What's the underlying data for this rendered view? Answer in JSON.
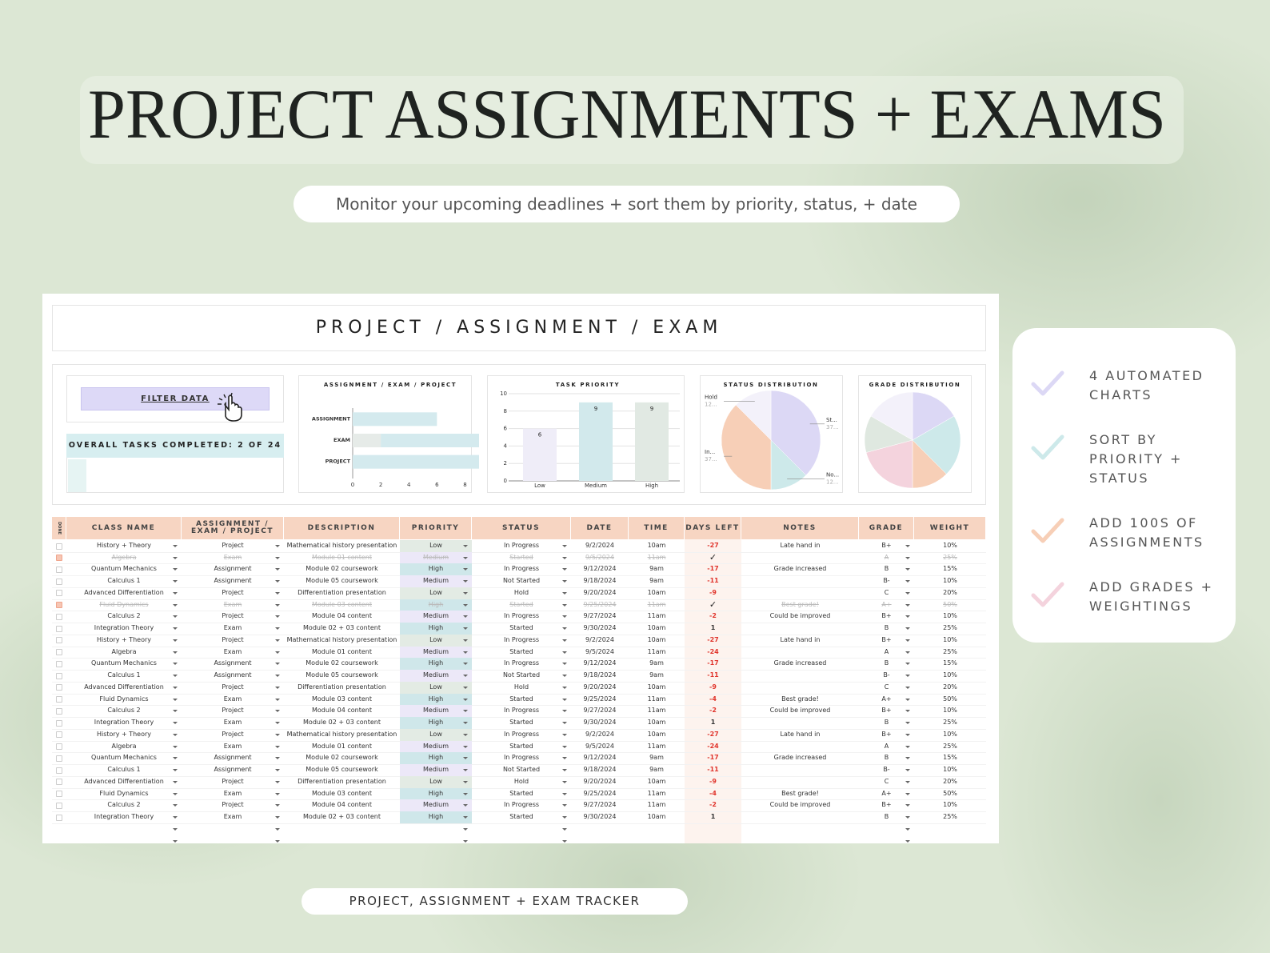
{
  "title": "PROJECT ASSIGNMENTS + EXAMS",
  "subtitle": "Monitor your upcoming deadlines + sort them by priority, status, + date",
  "sheet": {
    "title": "PROJECT / ASSIGNMENT / EXAM",
    "filter_button": "FILTER DATA",
    "tasks_completed": "OVERALL TASKS COMPLETED: 2 OF 24"
  },
  "chart_data": [
    {
      "type": "bar",
      "orientation": "horizontal",
      "title": "ASSIGNMENT / EXAM / PROJECT",
      "categories": [
        "ASSIGNMENT",
        "EXAM",
        "PROJECT"
      ],
      "series": [
        {
          "color": "#e6ebe8",
          "values": [
            0,
            2,
            0
          ]
        },
        {
          "color": "#d4eaee",
          "values": [
            6,
            7,
            9
          ]
        }
      ],
      "xlim": [
        0,
        9
      ],
      "xticks": [
        0,
        2,
        4,
        6,
        8
      ]
    },
    {
      "type": "bar",
      "title": "TASK PRIORITY",
      "categories": [
        "Low",
        "Medium",
        "High"
      ],
      "values": [
        6,
        9,
        9
      ],
      "colors": [
        "#efedf8",
        "#d2e9ec",
        "#e1e9e3"
      ],
      "ylim": [
        0,
        10
      ],
      "yticks": [
        0,
        2,
        4,
        6,
        8,
        10
      ],
      "grid": true
    },
    {
      "type": "pie",
      "title": "STATUS DISTRIBUTION",
      "categories": [
        "St...",
        "No...",
        "In...",
        "Hold"
      ],
      "values": [
        37.5,
        12.5,
        37.5,
        12.5
      ],
      "value_labels": [
        "37...",
        "12...",
        "37...",
        "12..."
      ],
      "colors": [
        "#dcd8f5",
        "#cde9ea",
        "#f7cfb7",
        "#f3f1fa"
      ]
    },
    {
      "type": "pie",
      "title": "GRADE DISTRIBUTION",
      "values": [
        4,
        5,
        3,
        5,
        3,
        4
      ],
      "colors": [
        "#dcd8f5",
        "#cde9ea",
        "#f7cfb7",
        "#f4d3dd",
        "#dfe8e0",
        "#f3f1fa"
      ]
    }
  ],
  "table": {
    "headers": [
      "DONE",
      "CLASS NAME",
      "ASSIGNMENT / EXAM / PROJECT",
      "DESCRIPTION",
      "PRIORITY",
      "STATUS",
      "DATE",
      "TIME",
      "DAYS LEFT",
      "NOTES",
      "GRADE",
      "WEIGHT"
    ],
    "priority_colors": {
      "Low": "#e3ebe4",
      "Medium": "#ece8f8",
      "High": "#cfe7ea"
    },
    "rows": [
      [
        false,
        "History + Theory",
        "Project",
        "Mathematical history presentation",
        "Low",
        "In Progress",
        "9/2/2024",
        "10am",
        -27,
        "Late hand in",
        "B+",
        "10%"
      ],
      [
        true,
        "Algebra",
        "Exam",
        "Module 01 content",
        "Medium",
        "Started",
        "9/5/2024",
        "11am",
        "✓",
        null,
        "A",
        "25%"
      ],
      [
        false,
        "Quantum Mechanics",
        "Assignment",
        "Module 02 coursework",
        "High",
        "In Progress",
        "9/12/2024",
        "9am",
        -17,
        "Grade increased",
        "B",
        "15%"
      ],
      [
        false,
        "Calculus 1",
        "Assignment",
        "Module 05 coursework",
        "Medium",
        "Not Started",
        "9/18/2024",
        "9am",
        -11,
        null,
        "B-",
        "10%"
      ],
      [
        false,
        "Advanced Differentiation",
        "Project",
        "Differentiation presentation",
        "Low",
        "Hold",
        "9/20/2024",
        "10am",
        -9,
        null,
        "C",
        "20%"
      ],
      [
        true,
        "Fluid Dynamics",
        "Exam",
        "Module 03 content",
        "High",
        "Started",
        "9/25/2024",
        "11am",
        "✓",
        "Best grade!",
        "A+",
        "50%"
      ],
      [
        false,
        "Calculus 2",
        "Project",
        "Module 04 content",
        "Medium",
        "In Progress",
        "9/27/2024",
        "11am",
        -2,
        "Could be improved",
        "B+",
        "10%"
      ],
      [
        false,
        "Integration Theory",
        "Exam",
        "Module 02 + 03 content",
        "High",
        "Started",
        "9/30/2024",
        "10am",
        1,
        null,
        "B",
        "25%"
      ],
      [
        false,
        "History + Theory",
        "Project",
        "Mathematical history presentation",
        "Low",
        "In Progress",
        "9/2/2024",
        "10am",
        -27,
        "Late hand in",
        "B+",
        "10%"
      ],
      [
        false,
        "Algebra",
        "Exam",
        "Module 01 content",
        "Medium",
        "Started",
        "9/5/2024",
        "11am",
        -24,
        null,
        "A",
        "25%"
      ],
      [
        false,
        "Quantum Mechanics",
        "Assignment",
        "Module 02 coursework",
        "High",
        "In Progress",
        "9/12/2024",
        "9am",
        -17,
        "Grade increased",
        "B",
        "15%"
      ],
      [
        false,
        "Calculus 1",
        "Assignment",
        "Module 05 coursework",
        "Medium",
        "Not Started",
        "9/18/2024",
        "9am",
        -11,
        null,
        "B-",
        "10%"
      ],
      [
        false,
        "Advanced Differentiation",
        "Project",
        "Differentiation presentation",
        "Low",
        "Hold",
        "9/20/2024",
        "10am",
        -9,
        null,
        "C",
        "20%"
      ],
      [
        false,
        "Fluid Dynamics",
        "Exam",
        "Module 03 content",
        "High",
        "Started",
        "9/25/2024",
        "11am",
        -4,
        "Best grade!",
        "A+",
        "50%"
      ],
      [
        false,
        "Calculus 2",
        "Project",
        "Module 04 content",
        "Medium",
        "In Progress",
        "9/27/2024",
        "11am",
        -2,
        "Could be improved",
        "B+",
        "10%"
      ],
      [
        false,
        "Integration Theory",
        "Exam",
        "Module 02 + 03 content",
        "High",
        "Started",
        "9/30/2024",
        "10am",
        1,
        null,
        "B",
        "25%"
      ],
      [
        false,
        "History + Theory",
        "Project",
        "Mathematical history presentation",
        "Low",
        "In Progress",
        "9/2/2024",
        "10am",
        -27,
        "Late hand in",
        "B+",
        "10%"
      ],
      [
        false,
        "Algebra",
        "Exam",
        "Module 01 content",
        "Medium",
        "Started",
        "9/5/2024",
        "11am",
        -24,
        null,
        "A",
        "25%"
      ],
      [
        false,
        "Quantum Mechanics",
        "Assignment",
        "Module 02 coursework",
        "High",
        "In Progress",
        "9/12/2024",
        "9am",
        -17,
        "Grade increased",
        "B",
        "15%"
      ],
      [
        false,
        "Calculus 1",
        "Assignment",
        "Module 05 coursework",
        "Medium",
        "Not Started",
        "9/18/2024",
        "9am",
        -11,
        null,
        "B-",
        "10%"
      ],
      [
        false,
        "Advanced Differentiation",
        "Project",
        "Differentiation presentation",
        "Low",
        "Hold",
        "9/20/2024",
        "10am",
        -9,
        null,
        "C",
        "20%"
      ],
      [
        false,
        "Fluid Dynamics",
        "Exam",
        "Module 03 content",
        "High",
        "Started",
        "9/25/2024",
        "11am",
        -4,
        "Best grade!",
        "A+",
        "50%"
      ],
      [
        false,
        "Calculus 2",
        "Project",
        "Module 04 content",
        "Medium",
        "In Progress",
        "9/27/2024",
        "11am",
        -2,
        "Could be improved",
        "B+",
        "10%"
      ],
      [
        false,
        "Integration Theory",
        "Exam",
        "Module 02 + 03 content",
        "High",
        "Started",
        "9/30/2024",
        "10am",
        1,
        null,
        "B",
        "25%"
      ]
    ]
  },
  "features": [
    {
      "text": "4 AUTOMATED CHARTS",
      "color": "#dcd8f5"
    },
    {
      "text": "SORT BY PRIORITY + STATUS",
      "color": "#cde9ea"
    },
    {
      "text": "ADD 100S OF ASSIGNMENTS",
      "color": "#f7cfb7"
    },
    {
      "text": "ADD GRADES + WEIGHTINGS",
      "color": "#f4d3dd"
    }
  ],
  "footer": "PROJECT, ASSIGNMENT + EXAM TRACKER"
}
